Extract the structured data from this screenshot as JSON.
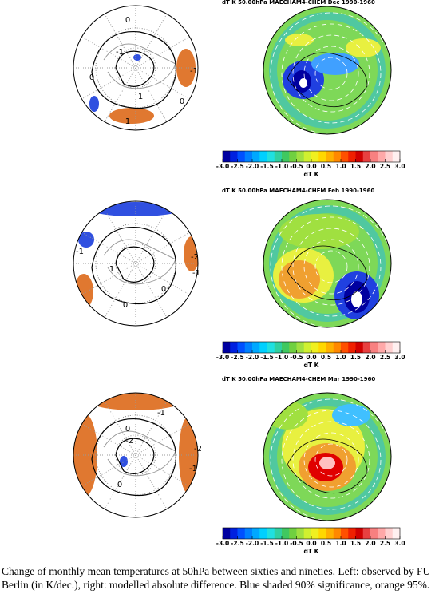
{
  "panels": [
    {
      "title": "dT K  50.00hPa MAECHAM4-CHEM Dec 1990-1960",
      "contour_labels": [
        "0",
        "-1",
        "-1",
        "1",
        "1",
        "0",
        "0"
      ]
    },
    {
      "title": "dT K  50.00hPa MAECHAM4-CHEM Feb 1990-1960",
      "contour_labels": [
        "-1",
        "-2",
        "-1",
        "0",
        "0",
        "1"
      ]
    },
    {
      "title": "dT K  50.00hPa MAECHAM4-CHEM Mar 1990-1960",
      "contour_labels": [
        "-1",
        "0",
        "-2",
        "-2",
        "-1",
        "0"
      ]
    }
  ],
  "colorbar": {
    "ticks": [
      "-3.0",
      "-2.5",
      "-2.0",
      "-1.5",
      "-1.0",
      "-0.5",
      "0.0",
      "0.5",
      "1.0",
      "1.5",
      "2.0",
      "2.5",
      "3.0"
    ],
    "label": "dT K"
  },
  "caption": "Change of monthly mean temperatures at 50hPa between sixties and nineties. Left: observed by FU Berlin (in K/dec.), right: modelled absolute difference. Blue shaded 90% significance, orange 95%."
}
